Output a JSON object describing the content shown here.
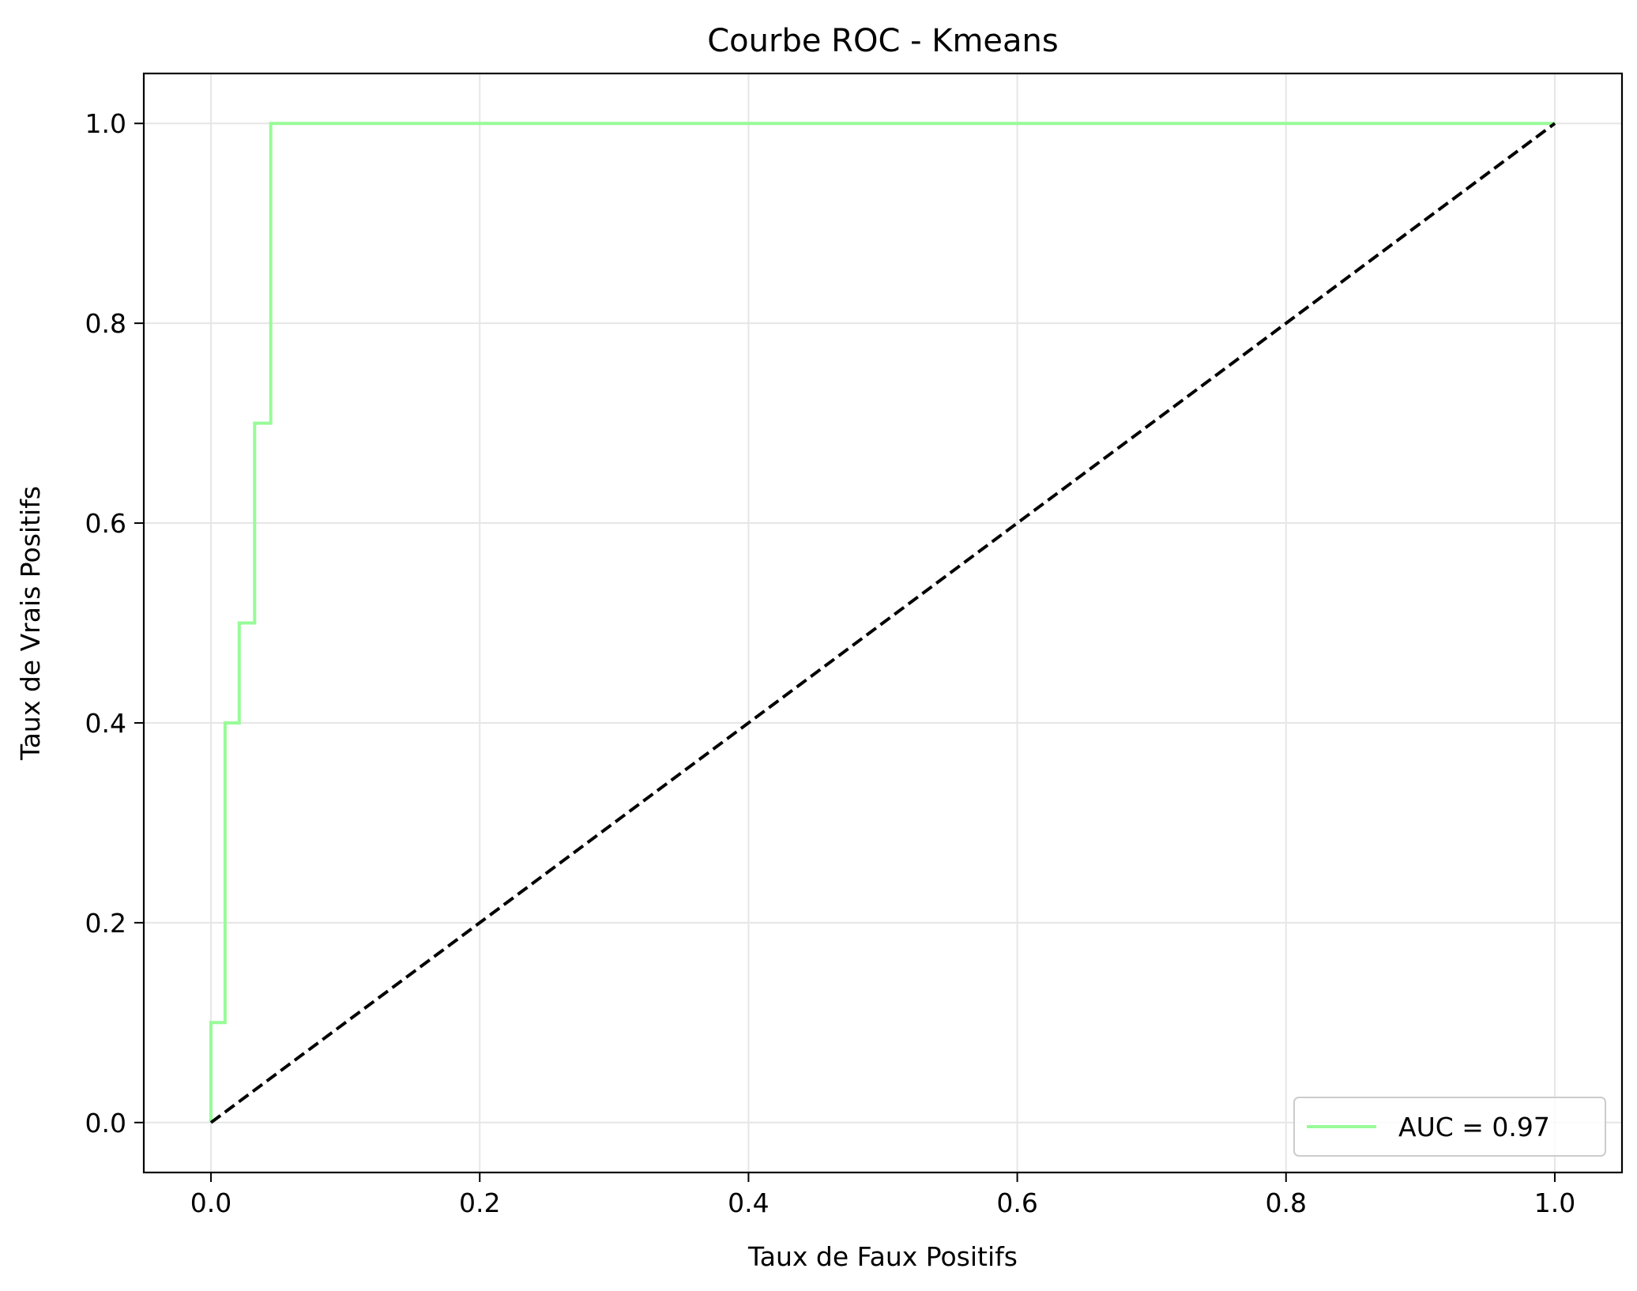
{
  "chart_data": {
    "type": "line",
    "title": "Courbe ROC - Kmeans",
    "xlabel": "Taux de Faux Positifs",
    "ylabel": "Taux de Vrais Positifs",
    "xlim": [
      -0.05,
      1.05
    ],
    "ylim": [
      -0.05,
      1.05
    ],
    "xticks": [
      0.0,
      0.2,
      0.4,
      0.6,
      0.8,
      1.0
    ],
    "xtick_labels": [
      "0.0",
      "0.2",
      "0.4",
      "0.6",
      "0.8",
      "1.0"
    ],
    "yticks": [
      0.0,
      0.2,
      0.4,
      0.6,
      0.8,
      1.0
    ],
    "ytick_labels": [
      "0.0",
      "0.2",
      "0.4",
      "0.6",
      "0.8",
      "1.0"
    ],
    "grid": true,
    "legend_position": "lower-right",
    "series": [
      {
        "name": "AUC = 0.97",
        "color": "#98fb98",
        "style": "solid",
        "x": [
          0.0,
          0.0,
          0.0105,
          0.0105,
          0.021,
          0.021,
          0.0325,
          0.0325,
          0.0445,
          0.0445,
          1.0
        ],
        "y": [
          0.0,
          0.1,
          0.1,
          0.4,
          0.4,
          0.5,
          0.5,
          0.7,
          0.7,
          1.0,
          1.0
        ]
      },
      {
        "color": "#000000",
        "style": "dashed",
        "x": [
          0.0,
          1.0
        ],
        "y": [
          0.0,
          1.0
        ]
      }
    ]
  }
}
